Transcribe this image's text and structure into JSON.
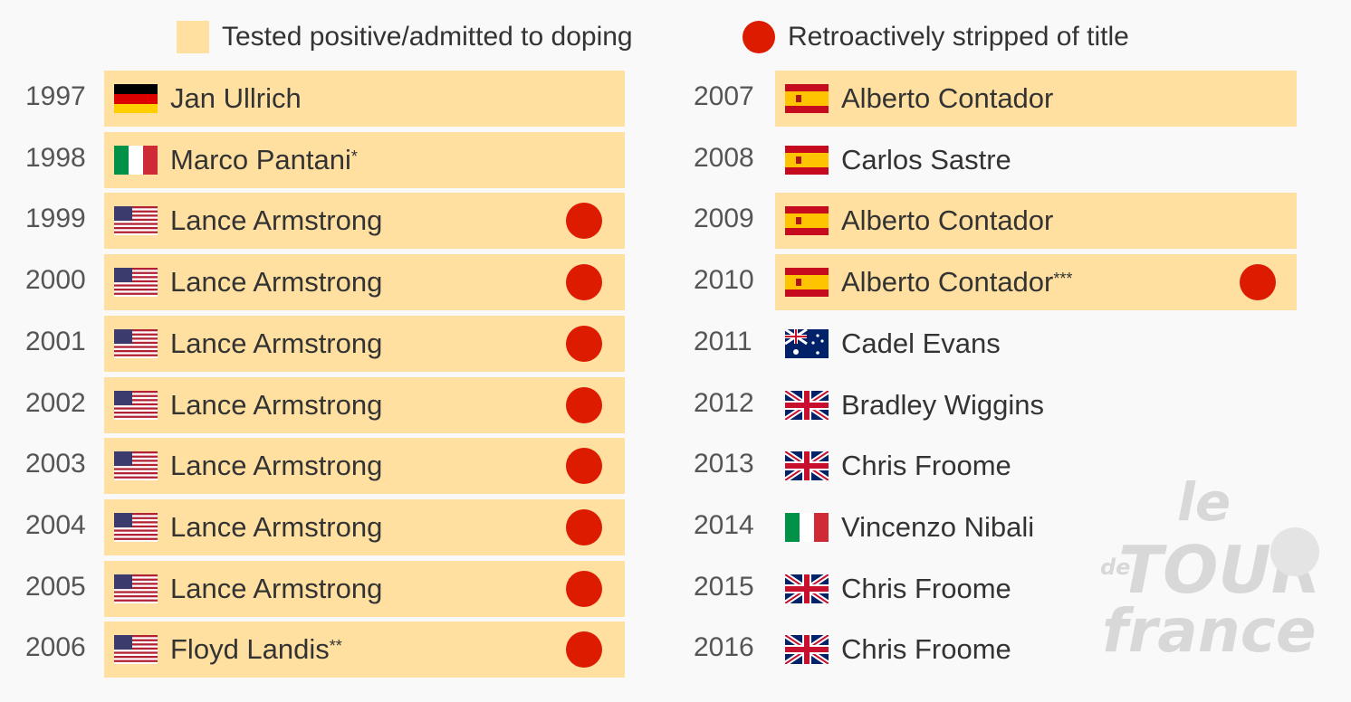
{
  "chart_data": {
    "type": "table",
    "legend": {
      "doping": {
        "label": "Tested positive/admitted to doping",
        "color": "#ffe0a1"
      },
      "stripped": {
        "label": "Retroactively stripped of title",
        "color": "#dd1b00"
      }
    },
    "rows": [
      {
        "year": "1997",
        "name": "Jan Ullrich",
        "suffix": "",
        "flag": "germany",
        "doping": true,
        "stripped": false
      },
      {
        "year": "1998",
        "name": "Marco Pantani",
        "suffix": "*",
        "flag": "italy",
        "doping": true,
        "stripped": false
      },
      {
        "year": "1999",
        "name": "Lance Armstrong",
        "suffix": "",
        "flag": "usa",
        "doping": true,
        "stripped": true
      },
      {
        "year": "2000",
        "name": "Lance Armstrong",
        "suffix": "",
        "flag": "usa",
        "doping": true,
        "stripped": true
      },
      {
        "year": "2001",
        "name": "Lance Armstrong",
        "suffix": "",
        "flag": "usa",
        "doping": true,
        "stripped": true
      },
      {
        "year": "2002",
        "name": "Lance Armstrong",
        "suffix": "",
        "flag": "usa",
        "doping": true,
        "stripped": true
      },
      {
        "year": "2003",
        "name": "Lance Armstrong",
        "suffix": "",
        "flag": "usa",
        "doping": true,
        "stripped": true
      },
      {
        "year": "2004",
        "name": "Lance Armstrong",
        "suffix": "",
        "flag": "usa",
        "doping": true,
        "stripped": true
      },
      {
        "year": "2005",
        "name": "Lance Armstrong",
        "suffix": "",
        "flag": "usa",
        "doping": true,
        "stripped": true
      },
      {
        "year": "2006",
        "name": "Floyd Landis",
        "suffix": "**",
        "flag": "usa",
        "doping": true,
        "stripped": true
      },
      {
        "year": "2007",
        "name": "Alberto Contador",
        "suffix": "",
        "flag": "spain",
        "doping": true,
        "stripped": false
      },
      {
        "year": "2008",
        "name": "Carlos Sastre",
        "suffix": "",
        "flag": "spain",
        "doping": false,
        "stripped": false
      },
      {
        "year": "2009",
        "name": "Alberto Contador",
        "suffix": "",
        "flag": "spain",
        "doping": true,
        "stripped": false
      },
      {
        "year": "2010",
        "name": "Alberto Contador",
        "suffix": "***",
        "flag": "spain",
        "doping": true,
        "stripped": true
      },
      {
        "year": "2011",
        "name": "Cadel Evans",
        "suffix": "",
        "flag": "australia",
        "doping": false,
        "stripped": false
      },
      {
        "year": "2012",
        "name": "Bradley Wiggins",
        "suffix": "",
        "flag": "uk",
        "doping": false,
        "stripped": false
      },
      {
        "year": "2013",
        "name": "Chris Froome",
        "suffix": "",
        "flag": "uk",
        "doping": false,
        "stripped": false
      },
      {
        "year": "2014",
        "name": "Vincenzo Nibali",
        "suffix": "",
        "flag": "italy",
        "doping": false,
        "stripped": false
      },
      {
        "year": "2015",
        "name": "Chris Froome",
        "suffix": "",
        "flag": "uk",
        "doping": false,
        "stripped": false
      },
      {
        "year": "2016",
        "name": "Chris Froome",
        "suffix": "",
        "flag": "uk",
        "doping": false,
        "stripped": false
      }
    ]
  },
  "logo": {
    "line1": "le",
    "line2": "de",
    "line3": "TOUR",
    "line4": "france"
  }
}
